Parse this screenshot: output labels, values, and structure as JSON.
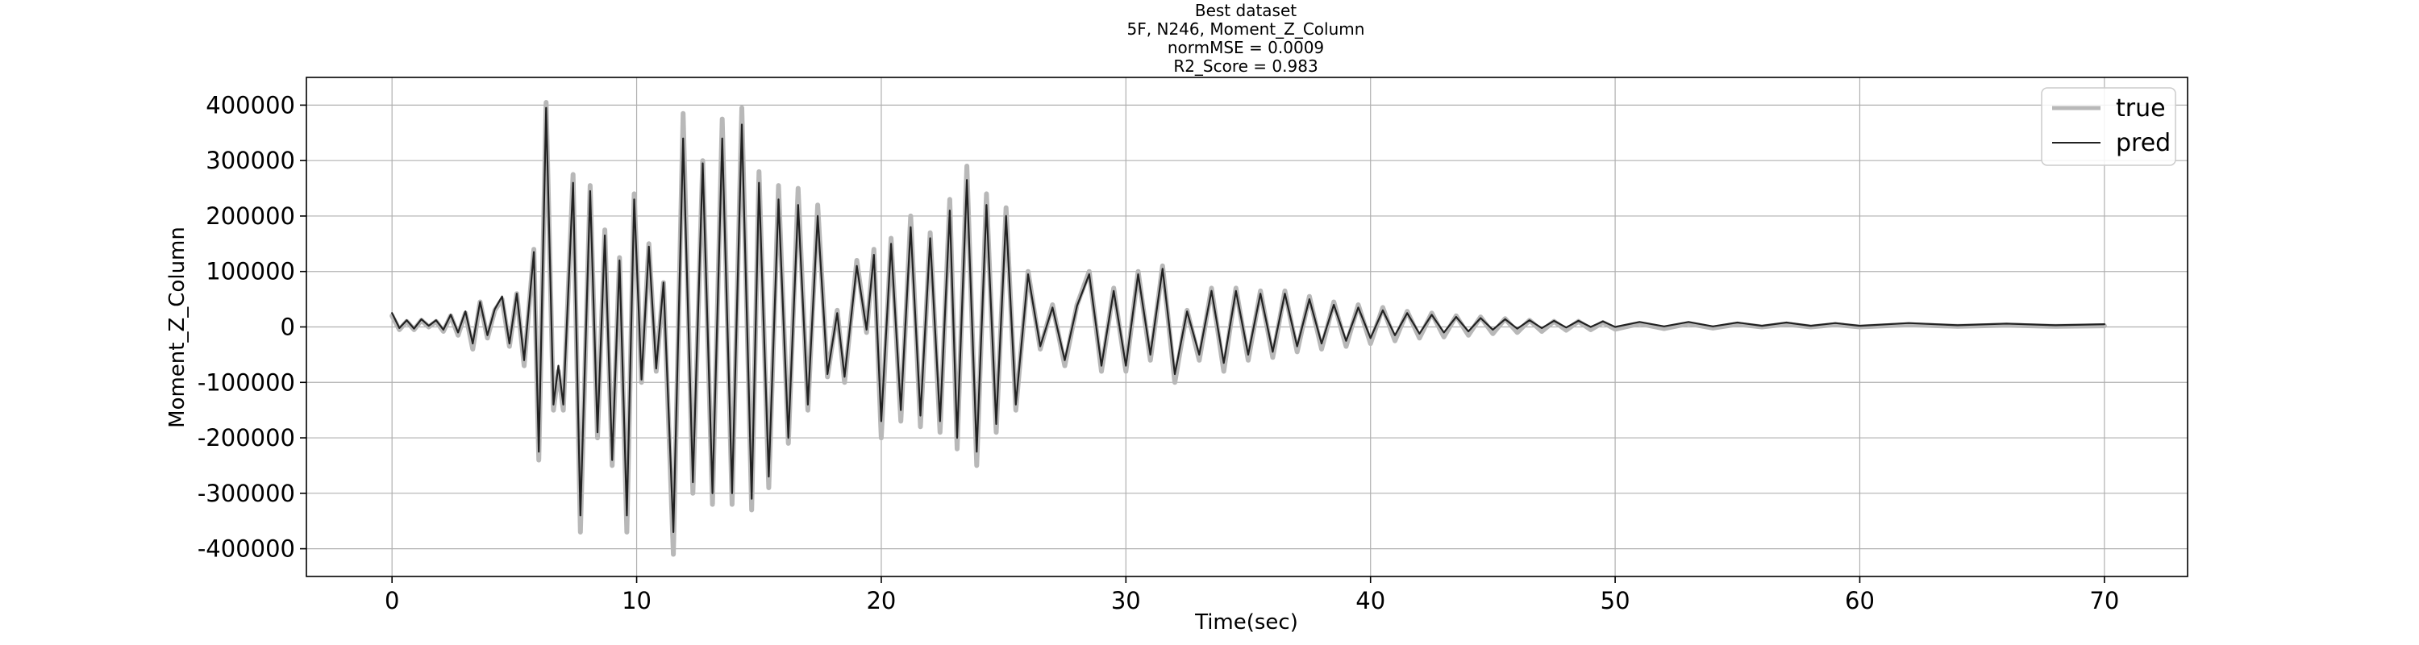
{
  "chart_data": {
    "type": "line",
    "title_lines": [
      "Best dataset",
      "5F, N246, Moment_Z_Column",
      "normMSE = 0.0009",
      "R2_Score = 0.983"
    ],
    "xlabel": "Time(sec)",
    "ylabel": "Moment_Z_Column",
    "xlim": [
      -3.5,
      73.4
    ],
    "ylim": [
      -450000,
      450000
    ],
    "xticks": [
      0,
      10,
      20,
      30,
      40,
      50,
      60,
      70
    ],
    "yticks": [
      400000,
      300000,
      200000,
      100000,
      0,
      -100000,
      -200000,
      -300000,
      -400000
    ],
    "grid": true,
    "legend_position": "top-right",
    "series": [
      {
        "name": "true",
        "color": "#b8b8b8",
        "points": [
          [
            0.0,
            20000
          ],
          [
            0.3,
            -5000
          ],
          [
            0.6,
            10000
          ],
          [
            0.9,
            -5000
          ],
          [
            1.2,
            12000
          ],
          [
            1.5,
            0
          ],
          [
            1.8,
            10000
          ],
          [
            2.1,
            -8000
          ],
          [
            2.4,
            20000
          ],
          [
            2.7,
            -15000
          ],
          [
            3.0,
            25000
          ],
          [
            3.3,
            -40000
          ],
          [
            3.6,
            45000
          ],
          [
            3.9,
            -20000
          ],
          [
            4.2,
            30000
          ],
          [
            4.5,
            50000
          ],
          [
            4.8,
            -35000
          ],
          [
            5.1,
            60000
          ],
          [
            5.4,
            -70000
          ],
          [
            5.8,
            140000
          ],
          [
            6.0,
            -240000
          ],
          [
            6.3,
            405000
          ],
          [
            6.6,
            -150000
          ],
          [
            6.8,
            -80000
          ],
          [
            7.0,
            -150000
          ],
          [
            7.4,
            275000
          ],
          [
            7.7,
            -370000
          ],
          [
            8.1,
            255000
          ],
          [
            8.4,
            -200000
          ],
          [
            8.7,
            175000
          ],
          [
            9.0,
            -250000
          ],
          [
            9.3,
            125000
          ],
          [
            9.6,
            -370000
          ],
          [
            9.9,
            240000
          ],
          [
            10.2,
            -100000
          ],
          [
            10.5,
            150000
          ],
          [
            10.8,
            -80000
          ],
          [
            11.1,
            80000
          ],
          [
            11.5,
            -410000
          ],
          [
            11.9,
            385000
          ],
          [
            12.3,
            -300000
          ],
          [
            12.7,
            300000
          ],
          [
            13.1,
            -320000
          ],
          [
            13.5,
            375000
          ],
          [
            13.9,
            -320000
          ],
          [
            14.3,
            395000
          ],
          [
            14.7,
            -330000
          ],
          [
            15.0,
            280000
          ],
          [
            15.4,
            -290000
          ],
          [
            15.8,
            255000
          ],
          [
            16.2,
            -210000
          ],
          [
            16.6,
            250000
          ],
          [
            17.0,
            -150000
          ],
          [
            17.4,
            220000
          ],
          [
            17.8,
            -90000
          ],
          [
            18.2,
            30000
          ],
          [
            18.5,
            -100000
          ],
          [
            19.0,
            120000
          ],
          [
            19.4,
            -10000
          ],
          [
            19.7,
            140000
          ],
          [
            20.0,
            -200000
          ],
          [
            20.4,
            160000
          ],
          [
            20.8,
            -170000
          ],
          [
            21.2,
            200000
          ],
          [
            21.6,
            -180000
          ],
          [
            22.0,
            170000
          ],
          [
            22.4,
            -190000
          ],
          [
            22.8,
            230000
          ],
          [
            23.1,
            -220000
          ],
          [
            23.5,
            290000
          ],
          [
            23.9,
            -250000
          ],
          [
            24.3,
            240000
          ],
          [
            24.7,
            -190000
          ],
          [
            25.1,
            215000
          ],
          [
            25.5,
            -150000
          ],
          [
            26.0,
            100000
          ],
          [
            26.5,
            -40000
          ],
          [
            27.0,
            40000
          ],
          [
            27.5,
            -70000
          ],
          [
            28.0,
            40000
          ],
          [
            28.5,
            100000
          ],
          [
            29.0,
            -80000
          ],
          [
            29.5,
            70000
          ],
          [
            30.0,
            -80000
          ],
          [
            30.5,
            100000
          ],
          [
            31.0,
            -60000
          ],
          [
            31.5,
            110000
          ],
          [
            32.0,
            -100000
          ],
          [
            32.5,
            30000
          ],
          [
            33.0,
            -60000
          ],
          [
            33.5,
            70000
          ],
          [
            34.0,
            -80000
          ],
          [
            34.5,
            70000
          ],
          [
            35.0,
            -60000
          ],
          [
            35.5,
            65000
          ],
          [
            36.0,
            -55000
          ],
          [
            36.5,
            65000
          ],
          [
            37.0,
            -45000
          ],
          [
            37.5,
            55000
          ],
          [
            38.0,
            -40000
          ],
          [
            38.5,
            45000
          ],
          [
            39.0,
            -35000
          ],
          [
            39.5,
            40000
          ],
          [
            40.0,
            -30000
          ],
          [
            40.5,
            35000
          ],
          [
            41.0,
            -25000
          ],
          [
            41.5,
            28000
          ],
          [
            42.0,
            -20000
          ],
          [
            42.5,
            25000
          ],
          [
            43.0,
            -18000
          ],
          [
            43.5,
            20000
          ],
          [
            44.0,
            -15000
          ],
          [
            44.5,
            18000
          ],
          [
            45.0,
            -12000
          ],
          [
            45.5,
            15000
          ],
          [
            46.0,
            -10000
          ],
          [
            46.5,
            12000
          ],
          [
            47.0,
            -8000
          ],
          [
            47.5,
            10000
          ],
          [
            48.0,
            -6000
          ],
          [
            48.5,
            10000
          ],
          [
            49.0,
            -5000
          ],
          [
            49.5,
            8000
          ],
          [
            50.0,
            -4000
          ],
          [
            51.0,
            6000
          ],
          [
            52.0,
            -3000
          ],
          [
            53.0,
            6000
          ],
          [
            54.0,
            -2000
          ],
          [
            55.0,
            5000
          ],
          [
            56.0,
            0
          ],
          [
            57.0,
            5000
          ],
          [
            58.0,
            0
          ],
          [
            59.0,
            4000
          ],
          [
            60.0,
            0
          ],
          [
            62.0,
            4000
          ],
          [
            64.0,
            1000
          ],
          [
            66.0,
            3000
          ],
          [
            68.0,
            1000
          ],
          [
            70.0,
            2000
          ]
        ]
      },
      {
        "name": "pred",
        "color": "#222222",
        "points": [
          [
            0.0,
            25000
          ],
          [
            0.3,
            -2000
          ],
          [
            0.6,
            12000
          ],
          [
            0.9,
            -3000
          ],
          [
            1.2,
            14000
          ],
          [
            1.5,
            2000
          ],
          [
            1.8,
            12000
          ],
          [
            2.1,
            -5000
          ],
          [
            2.4,
            22000
          ],
          [
            2.7,
            -10000
          ],
          [
            3.0,
            28000
          ],
          [
            3.3,
            -30000
          ],
          [
            3.6,
            45000
          ],
          [
            3.9,
            -15000
          ],
          [
            4.2,
            32000
          ],
          [
            4.5,
            55000
          ],
          [
            4.8,
            -30000
          ],
          [
            5.1,
            60000
          ],
          [
            5.4,
            -60000
          ],
          [
            5.8,
            135000
          ],
          [
            6.0,
            -225000
          ],
          [
            6.3,
            395000
          ],
          [
            6.6,
            -140000
          ],
          [
            6.8,
            -70000
          ],
          [
            7.0,
            -140000
          ],
          [
            7.4,
            260000
          ],
          [
            7.7,
            -340000
          ],
          [
            8.1,
            245000
          ],
          [
            8.4,
            -190000
          ],
          [
            8.7,
            165000
          ],
          [
            9.0,
            -240000
          ],
          [
            9.3,
            120000
          ],
          [
            9.6,
            -340000
          ],
          [
            9.9,
            230000
          ],
          [
            10.2,
            -95000
          ],
          [
            10.5,
            145000
          ],
          [
            10.8,
            -75000
          ],
          [
            11.1,
            80000
          ],
          [
            11.5,
            -370000
          ],
          [
            11.9,
            340000
          ],
          [
            12.3,
            -280000
          ],
          [
            12.7,
            295000
          ],
          [
            13.1,
            -300000
          ],
          [
            13.5,
            340000
          ],
          [
            13.9,
            -300000
          ],
          [
            14.3,
            365000
          ],
          [
            14.7,
            -310000
          ],
          [
            15.0,
            260000
          ],
          [
            15.4,
            -270000
          ],
          [
            15.8,
            230000
          ],
          [
            16.2,
            -200000
          ],
          [
            16.6,
            220000
          ],
          [
            17.0,
            -140000
          ],
          [
            17.4,
            200000
          ],
          [
            17.8,
            -85000
          ],
          [
            18.2,
            25000
          ],
          [
            18.5,
            -90000
          ],
          [
            19.0,
            110000
          ],
          [
            19.4,
            -5000
          ],
          [
            19.7,
            130000
          ],
          [
            20.0,
            -170000
          ],
          [
            20.4,
            150000
          ],
          [
            20.8,
            -150000
          ],
          [
            21.2,
            180000
          ],
          [
            21.6,
            -160000
          ],
          [
            22.0,
            160000
          ],
          [
            22.4,
            -170000
          ],
          [
            22.8,
            210000
          ],
          [
            23.1,
            -200000
          ],
          [
            23.5,
            265000
          ],
          [
            23.9,
            -225000
          ],
          [
            24.3,
            220000
          ],
          [
            24.7,
            -175000
          ],
          [
            25.1,
            200000
          ],
          [
            25.5,
            -140000
          ],
          [
            26.0,
            95000
          ],
          [
            26.5,
            -35000
          ],
          [
            27.0,
            35000
          ],
          [
            27.5,
            -60000
          ],
          [
            28.0,
            38000
          ],
          [
            28.5,
            95000
          ],
          [
            29.0,
            -70000
          ],
          [
            29.5,
            65000
          ],
          [
            30.0,
            -70000
          ],
          [
            30.5,
            95000
          ],
          [
            31.0,
            -50000
          ],
          [
            31.5,
            105000
          ],
          [
            32.0,
            -85000
          ],
          [
            32.5,
            28000
          ],
          [
            33.0,
            -50000
          ],
          [
            33.5,
            65000
          ],
          [
            34.0,
            -65000
          ],
          [
            34.5,
            65000
          ],
          [
            35.0,
            -50000
          ],
          [
            35.5,
            60000
          ],
          [
            36.0,
            -45000
          ],
          [
            36.5,
            60000
          ],
          [
            37.0,
            -35000
          ],
          [
            37.5,
            50000
          ],
          [
            38.0,
            -30000
          ],
          [
            38.5,
            40000
          ],
          [
            39.0,
            -25000
          ],
          [
            39.5,
            35000
          ],
          [
            40.0,
            -20000
          ],
          [
            40.5,
            30000
          ],
          [
            41.0,
            -15000
          ],
          [
            41.5,
            25000
          ],
          [
            42.0,
            -12000
          ],
          [
            42.5,
            22000
          ],
          [
            43.0,
            -10000
          ],
          [
            43.5,
            18000
          ],
          [
            44.0,
            -8000
          ],
          [
            44.5,
            16000
          ],
          [
            45.0,
            -5000
          ],
          [
            45.5,
            14000
          ],
          [
            46.0,
            -3000
          ],
          [
            46.5,
            12000
          ],
          [
            47.0,
            -2000
          ],
          [
            47.5,
            11000
          ],
          [
            48.0,
            -1000
          ],
          [
            48.5,
            11000
          ],
          [
            49.0,
            0
          ],
          [
            49.5,
            10000
          ],
          [
            50.0,
            0
          ],
          [
            51.0,
            9000
          ],
          [
            52.0,
            1000
          ],
          [
            53.0,
            9000
          ],
          [
            54.0,
            1000
          ],
          [
            55.0,
            8000
          ],
          [
            56.0,
            2000
          ],
          [
            57.0,
            8000
          ],
          [
            58.0,
            2000
          ],
          [
            59.0,
            7000
          ],
          [
            60.0,
            2000
          ],
          [
            62.0,
            7000
          ],
          [
            64.0,
            3000
          ],
          [
            66.0,
            6000
          ],
          [
            68.0,
            3000
          ],
          [
            70.0,
            5000
          ]
        ]
      }
    ]
  }
}
